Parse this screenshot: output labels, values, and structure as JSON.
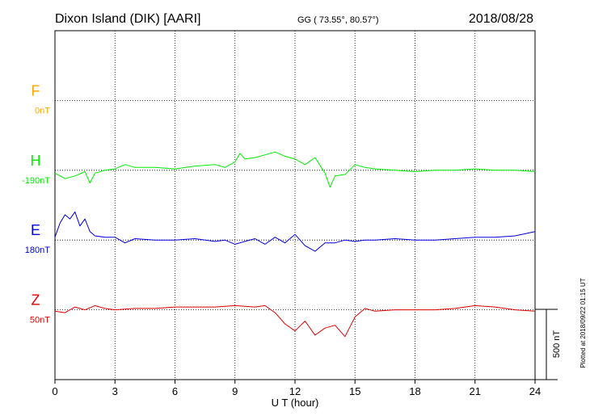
{
  "header": {
    "station": "Dixon Island (DIK)  [AARI]",
    "coords": "GG ( 73.55°,  80.57°)",
    "date": "2018/08/28"
  },
  "footer": {
    "plotted": "Plotted at 2018/09/22 01:15 UT"
  },
  "chart_data": {
    "type": "line",
    "xlabel": "U T (hour)",
    "xlim": [
      0,
      24
    ],
    "xticks": [
      0,
      3,
      6,
      9,
      12,
      15,
      18,
      21,
      24
    ],
    "scale_bar": {
      "label": "500 nT",
      "value": 500
    },
    "series": [
      {
        "name": "F",
        "baseline_label": "0nT",
        "color": "#ffa500",
        "baseline_row": 1,
        "x": [],
        "y": []
      },
      {
        "name": "H",
        "baseline_label": "-190nT",
        "color": "#00ee00",
        "baseline_row": 2,
        "x": [
          0,
          0.5,
          1,
          1.5,
          1.75,
          2,
          2.5,
          3,
          3.5,
          4,
          5,
          6,
          7,
          8,
          8.5,
          9,
          9.25,
          9.5,
          10,
          10.5,
          11,
          11.5,
          12,
          12.5,
          13,
          13.5,
          13.75,
          14,
          14.5,
          15,
          15.5,
          16,
          17,
          18,
          19,
          20,
          21,
          22,
          23,
          24
        ],
        "y": [
          -20,
          -60,
          -40,
          -10,
          -90,
          -20,
          0,
          10,
          40,
          20,
          20,
          10,
          30,
          40,
          20,
          60,
          120,
          80,
          90,
          110,
          130,
          100,
          80,
          40,
          90,
          -20,
          -120,
          -40,
          -30,
          40,
          20,
          10,
          0,
          -10,
          0,
          0,
          10,
          0,
          0,
          -10
        ]
      },
      {
        "name": "E",
        "baseline_label": "180nT",
        "color": "#0000dd",
        "baseline_row": 3,
        "x": [
          0,
          0.25,
          0.5,
          0.75,
          1,
          1.25,
          1.5,
          1.75,
          2,
          2.5,
          3,
          3.5,
          4,
          5,
          6,
          7,
          8,
          8.5,
          9,
          9.5,
          10,
          10.5,
          11,
          11.5,
          12,
          12.5,
          13,
          13.5,
          14,
          14.5,
          15,
          15.5,
          16,
          17,
          18,
          19,
          20,
          21,
          22,
          23,
          24
        ],
        "y": [
          20,
          120,
          180,
          150,
          200,
          100,
          150,
          60,
          30,
          20,
          20,
          -20,
          10,
          0,
          0,
          10,
          -10,
          0,
          -30,
          -10,
          10,
          -30,
          20,
          -20,
          40,
          -40,
          -80,
          -20,
          -20,
          0,
          -10,
          0,
          0,
          10,
          0,
          0,
          10,
          20,
          20,
          30,
          60
        ]
      },
      {
        "name": "Z",
        "baseline_label": "50nT",
        "color": "#dd0000",
        "baseline_row": 4,
        "x": [
          0,
          0.5,
          1,
          1.5,
          2,
          2.5,
          3,
          4,
          5,
          6,
          7,
          8,
          9,
          10,
          10.5,
          11,
          11.5,
          12,
          12.5,
          13,
          13.5,
          14,
          14.5,
          15,
          15.5,
          16,
          17,
          18,
          19,
          20,
          21,
          22,
          23,
          24
        ],
        "y": [
          -10,
          -20,
          20,
          0,
          30,
          10,
          0,
          10,
          10,
          20,
          20,
          20,
          30,
          20,
          30,
          -20,
          -100,
          -150,
          -80,
          -180,
          -130,
          -110,
          -190,
          -50,
          10,
          -10,
          0,
          0,
          0,
          10,
          30,
          20,
          0,
          -10
        ]
      }
    ]
  }
}
